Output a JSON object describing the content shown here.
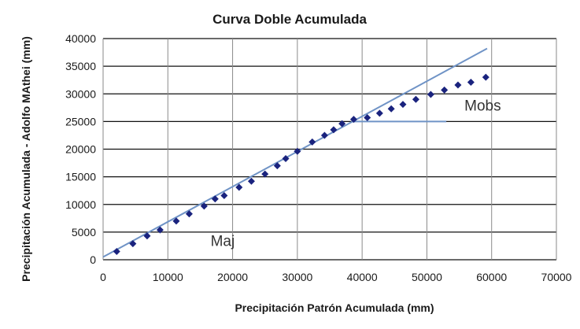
{
  "chart_data": {
    "type": "scatter",
    "title": "Curva Doble Acumulada",
    "xlabel": "Precipitación Patrón Acumulada  (mm)",
    "ylabel": "Precipitación Acumulada - Adolfo MAthei (mm)",
    "xlim": [
      0,
      70000
    ],
    "ylim": [
      0,
      40000
    ],
    "x_ticks": [
      0,
      10000,
      20000,
      30000,
      40000,
      50000,
      60000,
      70000
    ],
    "y_ticks": [
      0,
      5000,
      10000,
      15000,
      20000,
      25000,
      30000,
      35000,
      40000
    ],
    "x_tick_labels": [
      "0",
      "10000",
      "20000",
      "30000",
      "40000",
      "50000",
      "60000",
      "70000"
    ],
    "y_tick_labels": [
      "0",
      "5000",
      "10000",
      "15000",
      "20000",
      "25000",
      "30000",
      "35000",
      "40000"
    ],
    "grid": "horizontal-and-vertical",
    "marker_color": "#1a237e",
    "line_color": "#6f93c6",
    "series": [
      {
        "type": "scatter",
        "x": [
          2100,
          4600,
          6800,
          8800,
          11300,
          13300,
          15600,
          17300,
          18700,
          21000,
          22900,
          25000,
          26900,
          28200,
          30000,
          32300,
          34200,
          35600,
          36900,
          38700,
          40800,
          42700,
          44500,
          46300,
          48300,
          50600,
          52700,
          54800,
          56800,
          59100
        ],
        "y": [
          1500,
          2900,
          4300,
          5400,
          7000,
          8300,
          9700,
          11000,
          11600,
          13100,
          14200,
          15500,
          17000,
          18300,
          19600,
          21300,
          22500,
          23500,
          24600,
          25400,
          25700,
          26500,
          27300,
          28100,
          29000,
          29900,
          30700,
          31600,
          32100,
          33000
        ]
      }
    ],
    "lines": [
      {
        "name": "Maj",
        "x": [
          0,
          59300
        ],
        "y": [
          500,
          38200
        ]
      },
      {
        "name": "Mobs",
        "x": [
          38500,
          53000
        ],
        "y": [
          25000,
          25000
        ]
      }
    ],
    "annotations": [
      {
        "text": "Mobs",
        "x": 55800,
        "y": 28000
      },
      {
        "text": "Maj",
        "x": 16600,
        "y": 3500
      }
    ]
  }
}
